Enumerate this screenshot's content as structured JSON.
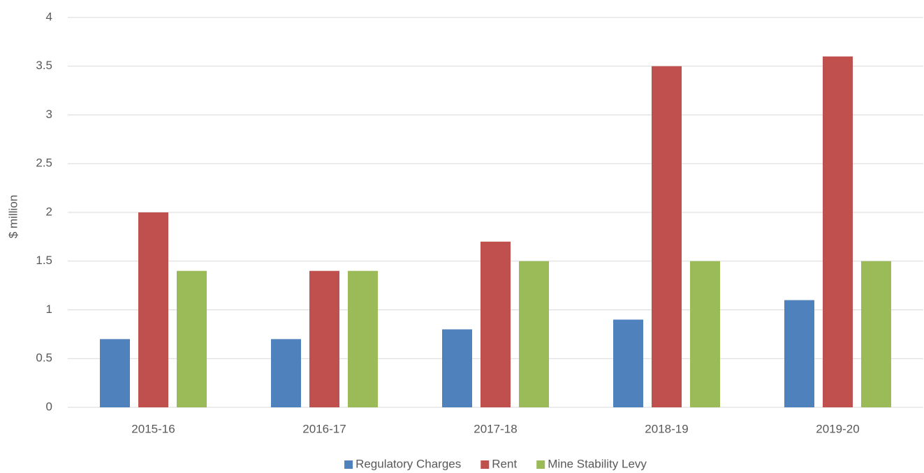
{
  "chart_data": {
    "type": "bar",
    "y_label": "$ million",
    "categories": [
      "2015-16",
      "2016-17",
      "2017-18",
      "2018-19",
      "2019-20"
    ],
    "series": [
      {
        "name": "Regulatory Charges",
        "color": "#4f81bd",
        "values": [
          0.7,
          0.7,
          0.8,
          0.9,
          1.1
        ]
      },
      {
        "name": "Rent",
        "color": "#c0504d",
        "values": [
          2.0,
          1.4,
          1.7,
          3.5,
          3.6
        ]
      },
      {
        "name": "Mine Stability Levy",
        "color": "#9bbb59",
        "values": [
          1.4,
          1.4,
          1.5,
          1.5,
          1.5
        ]
      }
    ],
    "ylim": [
      0,
      4
    ],
    "yticks": [
      0,
      0.5,
      1,
      1.5,
      2,
      2.5,
      3,
      3.5,
      4
    ],
    "grid": true,
    "legend": "bottom"
  }
}
